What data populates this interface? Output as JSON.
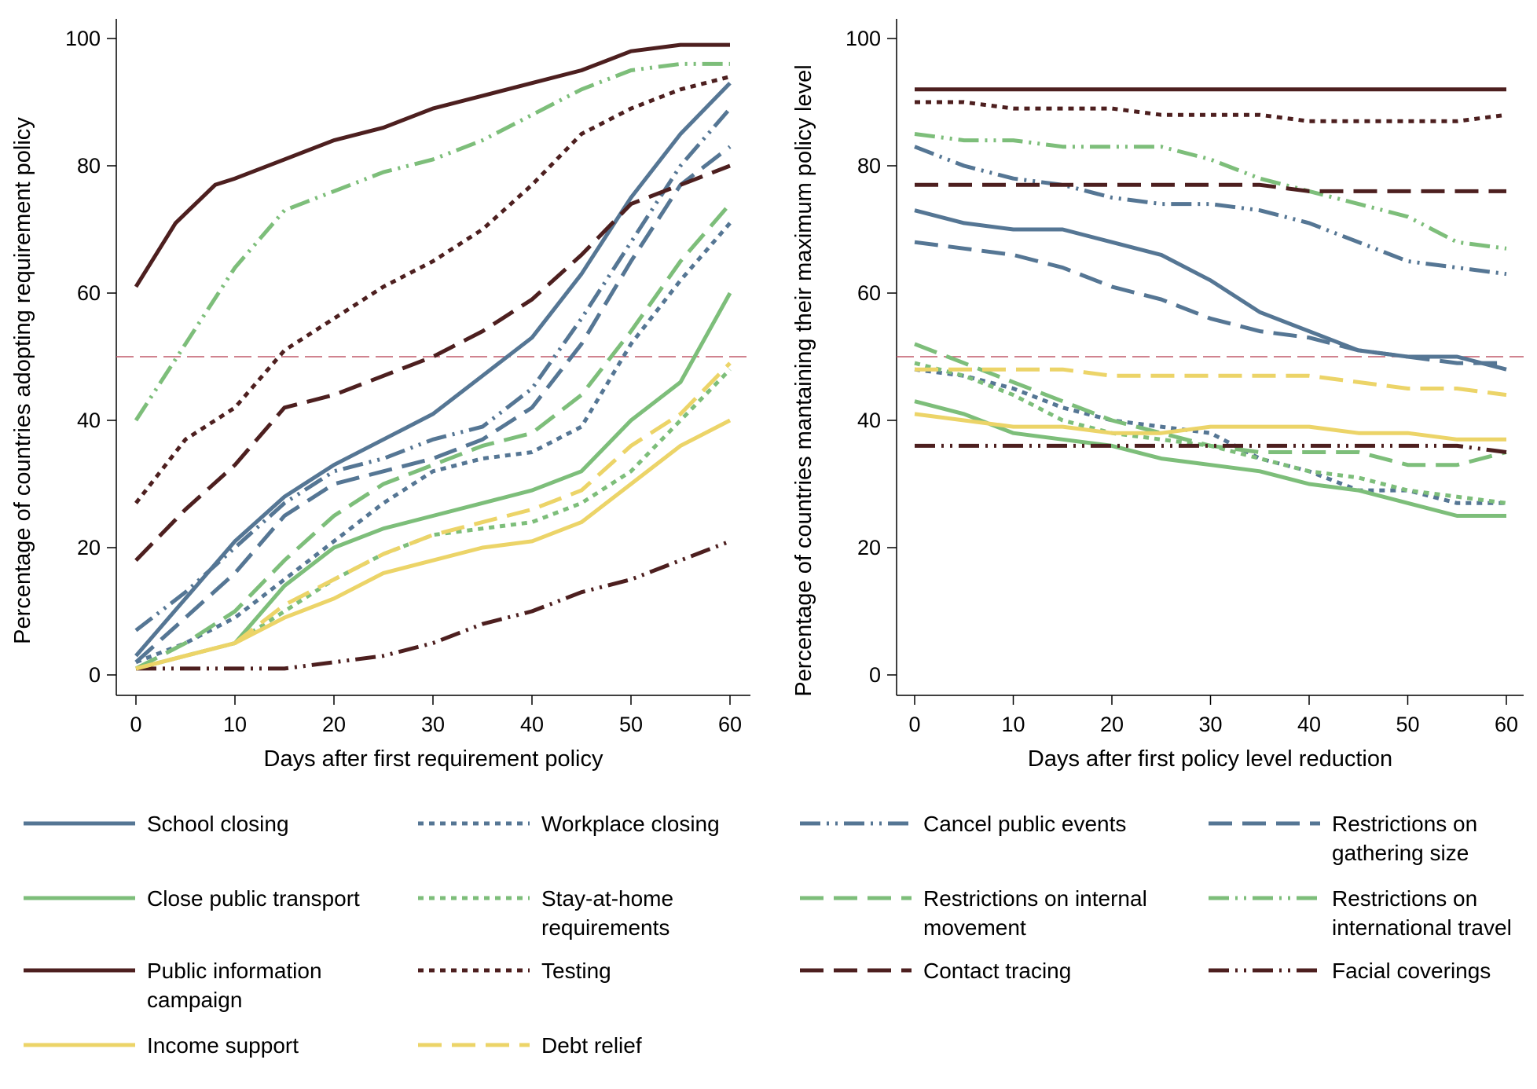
{
  "colors": {
    "blue": "#557694",
    "green": "#7dbe7a",
    "maroon": "#4d1f1f",
    "yellow": "#ecd468",
    "reference": "#c05a6a"
  },
  "chart_data": [
    {
      "type": "line",
      "xlabel": "Days after first requirement policy",
      "ylabel": "Percentage of countries adopting requirement policy",
      "xlim": [
        0,
        60
      ],
      "ylim": [
        0,
        100
      ],
      "xticks": [
        0,
        10,
        20,
        30,
        40,
        50,
        60
      ],
      "yticks": [
        0,
        20,
        40,
        60,
        80,
        100
      ],
      "reference_line": 50,
      "grid": false,
      "series": [
        {
          "name": "School closing",
          "color": "blue",
          "dash": "solid",
          "x": [
            0,
            5,
            10,
            15,
            20,
            25,
            30,
            35,
            40,
            45,
            50,
            55,
            60
          ],
          "y": [
            3,
            12,
            21,
            28,
            33,
            37,
            41,
            47,
            53,
            63,
            75,
            85,
            93
          ]
        },
        {
          "name": "Workplace closing",
          "color": "blue",
          "dash": "short",
          "x": [
            0,
            5,
            10,
            15,
            20,
            25,
            30,
            35,
            40,
            45,
            50,
            55,
            60
          ],
          "y": [
            2,
            5,
            9,
            15,
            21,
            27,
            32,
            34,
            35,
            39,
            52,
            62,
            71
          ]
        },
        {
          "name": "Cancel public events",
          "color": "blue",
          "dash": "dashdot",
          "x": [
            0,
            5,
            10,
            15,
            20,
            25,
            30,
            35,
            40,
            45,
            50,
            55,
            60
          ],
          "y": [
            7,
            13,
            20,
            27,
            32,
            34,
            37,
            39,
            45,
            56,
            68,
            80,
            89
          ]
        },
        {
          "name": "Restrictions on gathering size",
          "color": "blue",
          "dash": "long",
          "x": [
            0,
            5,
            10,
            15,
            20,
            25,
            30,
            35,
            40,
            45,
            50,
            55,
            60
          ],
          "y": [
            2,
            9,
            16,
            25,
            30,
            32,
            34,
            37,
            42,
            52,
            65,
            77,
            83
          ]
        },
        {
          "name": "Close public transport",
          "color": "green",
          "dash": "solid",
          "x": [
            0,
            5,
            10,
            15,
            20,
            25,
            30,
            35,
            40,
            45,
            50,
            55,
            60
          ],
          "y": [
            1,
            3,
            5,
            14,
            20,
            23,
            25,
            27,
            29,
            32,
            40,
            46,
            60
          ]
        },
        {
          "name": "Stay-at-home requirements",
          "color": "green",
          "dash": "short",
          "x": [
            0,
            5,
            10,
            15,
            20,
            25,
            30,
            35,
            40,
            45,
            50,
            55,
            60
          ],
          "y": [
            1,
            3,
            5,
            10,
            15,
            19,
            22,
            23,
            24,
            27,
            32,
            40,
            48
          ]
        },
        {
          "name": "Restrictions on internal movement",
          "color": "green",
          "dash": "long",
          "x": [
            0,
            5,
            10,
            15,
            20,
            25,
            30,
            35,
            40,
            45,
            50,
            55,
            60
          ],
          "y": [
            1,
            5,
            10,
            18,
            25,
            30,
            33,
            36,
            38,
            44,
            54,
            65,
            74
          ]
        },
        {
          "name": "Restrictions on international travel",
          "color": "green",
          "dash": "dashdot",
          "x": [
            0,
            5,
            10,
            15,
            20,
            25,
            30,
            35,
            40,
            45,
            50,
            55,
            60
          ],
          "y": [
            40,
            52,
            64,
            73,
            76,
            79,
            81,
            84,
            88,
            92,
            95,
            96,
            96
          ]
        },
        {
          "name": "Public information campaign",
          "color": "maroon",
          "dash": "solid",
          "x": [
            0,
            2,
            4,
            6,
            8,
            10,
            15,
            20,
            25,
            30,
            35,
            40,
            45,
            50,
            55,
            60
          ],
          "y": [
            61,
            66,
            71,
            74,
            77,
            78,
            81,
            84,
            86,
            89,
            91,
            93,
            95,
            98,
            99,
            99
          ]
        },
        {
          "name": "Testing",
          "color": "maroon",
          "dash": "short",
          "x": [
            0,
            5,
            10,
            15,
            20,
            25,
            30,
            35,
            40,
            45,
            50,
            55,
            60
          ],
          "y": [
            27,
            37,
            42,
            51,
            56,
            61,
            65,
            70,
            77,
            85,
            89,
            92,
            94
          ]
        },
        {
          "name": "Contact tracing",
          "color": "maroon",
          "dash": "long",
          "x": [
            0,
            5,
            10,
            15,
            20,
            25,
            30,
            35,
            40,
            45,
            50,
            55,
            60
          ],
          "y": [
            18,
            26,
            33,
            42,
            44,
            47,
            50,
            54,
            59,
            66,
            74,
            77,
            80
          ]
        },
        {
          "name": "Facial coverings",
          "color": "maroon",
          "dash": "dashdot",
          "x": [
            0,
            5,
            10,
            15,
            20,
            25,
            30,
            35,
            40,
            45,
            50,
            55,
            60
          ],
          "y": [
            1,
            1,
            1,
            1,
            2,
            3,
            5,
            8,
            10,
            13,
            15,
            18,
            21
          ]
        },
        {
          "name": "Income support",
          "color": "yellow",
          "dash": "solid",
          "x": [
            0,
            5,
            10,
            15,
            20,
            25,
            30,
            35,
            40,
            45,
            50,
            55,
            60
          ],
          "y": [
            1,
            3,
            5,
            9,
            12,
            16,
            18,
            20,
            21,
            24,
            30,
            36,
            40
          ]
        },
        {
          "name": "Debt relief",
          "color": "yellow",
          "dash": "long",
          "x": [
            0,
            5,
            10,
            15,
            20,
            25,
            30,
            35,
            40,
            45,
            50,
            55,
            60
          ],
          "y": [
            1,
            3,
            5,
            11,
            15,
            19,
            22,
            24,
            26,
            29,
            36,
            41,
            49
          ]
        }
      ]
    },
    {
      "type": "line",
      "xlabel": "Days after first policy level reduction",
      "ylabel": "Percentage of countries mantaining their maximum policy level",
      "xlim": [
        0,
        60
      ],
      "ylim": [
        0,
        100
      ],
      "xticks": [
        0,
        10,
        20,
        30,
        40,
        50,
        60
      ],
      "yticks": [
        0,
        20,
        40,
        60,
        80,
        100
      ],
      "reference_line": 50,
      "grid": false,
      "series": [
        {
          "name": "School closing",
          "color": "blue",
          "dash": "solid",
          "x": [
            0,
            5,
            10,
            15,
            20,
            25,
            30,
            35,
            40,
            45,
            50,
            55,
            60
          ],
          "y": [
            73,
            71,
            70,
            70,
            68,
            66,
            62,
            57,
            54,
            51,
            50,
            50,
            48
          ]
        },
        {
          "name": "Workplace closing",
          "color": "blue",
          "dash": "short",
          "x": [
            0,
            5,
            10,
            15,
            20,
            25,
            30,
            35,
            40,
            45,
            50,
            55,
            60
          ],
          "y": [
            48,
            47,
            45,
            42,
            40,
            39,
            38,
            34,
            32,
            29,
            29,
            27,
            27
          ]
        },
        {
          "name": "Cancel public events",
          "color": "blue",
          "dash": "dashdot",
          "x": [
            0,
            5,
            10,
            15,
            20,
            25,
            30,
            35,
            40,
            45,
            50,
            55,
            60
          ],
          "y": [
            83,
            80,
            78,
            77,
            75,
            74,
            74,
            73,
            71,
            68,
            65,
            64,
            63
          ]
        },
        {
          "name": "Restrictions on gathering size",
          "color": "blue",
          "dash": "long",
          "x": [
            0,
            5,
            10,
            15,
            20,
            25,
            30,
            35,
            40,
            45,
            50,
            55,
            60
          ],
          "y": [
            68,
            67,
            66,
            64,
            61,
            59,
            56,
            54,
            53,
            51,
            50,
            49,
            49
          ]
        },
        {
          "name": "Close public transport",
          "color": "green",
          "dash": "solid",
          "x": [
            0,
            5,
            10,
            15,
            20,
            25,
            30,
            35,
            40,
            45,
            50,
            55,
            60
          ],
          "y": [
            43,
            41,
            38,
            37,
            36,
            34,
            33,
            32,
            30,
            29,
            27,
            25,
            25
          ]
        },
        {
          "name": "Stay-at-home requirements",
          "color": "green",
          "dash": "short",
          "x": [
            0,
            5,
            10,
            15,
            20,
            25,
            30,
            35,
            40,
            45,
            50,
            55,
            60
          ],
          "y": [
            49,
            47,
            44,
            40,
            38,
            37,
            36,
            34,
            32,
            31,
            29,
            28,
            27
          ]
        },
        {
          "name": "Restrictions on internal movement",
          "color": "green",
          "dash": "long",
          "x": [
            0,
            5,
            10,
            15,
            20,
            25,
            30,
            35,
            40,
            45,
            50,
            55,
            60
          ],
          "y": [
            52,
            49,
            46,
            43,
            40,
            38,
            36,
            35,
            35,
            35,
            33,
            33,
            35
          ]
        },
        {
          "name": "Restrictions on international travel",
          "color": "green",
          "dash": "dashdot",
          "x": [
            0,
            5,
            10,
            15,
            20,
            25,
            30,
            35,
            40,
            45,
            50,
            55,
            60
          ],
          "y": [
            85,
            84,
            84,
            83,
            83,
            83,
            81,
            78,
            76,
            74,
            72,
            68,
            67
          ]
        },
        {
          "name": "Public information campaign",
          "color": "maroon",
          "dash": "solid",
          "x": [
            0,
            5,
            10,
            15,
            20,
            25,
            30,
            35,
            40,
            45,
            50,
            55,
            60
          ],
          "y": [
            92,
            92,
            92,
            92,
            92,
            92,
            92,
            92,
            92,
            92,
            92,
            92,
            92
          ]
        },
        {
          "name": "Testing",
          "color": "maroon",
          "dash": "short",
          "x": [
            0,
            5,
            10,
            15,
            20,
            25,
            30,
            35,
            40,
            45,
            50,
            55,
            60
          ],
          "y": [
            90,
            90,
            89,
            89,
            89,
            88,
            88,
            88,
            87,
            87,
            87,
            87,
            88
          ]
        },
        {
          "name": "Contact tracing",
          "color": "maroon",
          "dash": "long",
          "x": [
            0,
            5,
            10,
            15,
            20,
            25,
            30,
            35,
            40,
            45,
            50,
            55,
            60
          ],
          "y": [
            77,
            77,
            77,
            77,
            77,
            77,
            77,
            77,
            76,
            76,
            76,
            76,
            76
          ]
        },
        {
          "name": "Facial coverings",
          "color": "maroon",
          "dash": "dashdot",
          "x": [
            0,
            5,
            10,
            15,
            20,
            25,
            30,
            35,
            40,
            45,
            50,
            55,
            60
          ],
          "y": [
            36,
            36,
            36,
            36,
            36,
            36,
            36,
            36,
            36,
            36,
            36,
            36,
            35
          ]
        },
        {
          "name": "Income support",
          "color": "yellow",
          "dash": "solid",
          "x": [
            0,
            5,
            10,
            15,
            20,
            25,
            30,
            35,
            40,
            45,
            50,
            55,
            60
          ],
          "y": [
            41,
            40,
            39,
            39,
            38,
            38,
            39,
            39,
            39,
            38,
            38,
            37,
            37
          ]
        },
        {
          "name": "Debt relief",
          "color": "yellow",
          "dash": "long",
          "x": [
            0,
            5,
            10,
            15,
            20,
            25,
            30,
            35,
            40,
            45,
            50,
            55,
            60
          ],
          "y": [
            48,
            48,
            48,
            48,
            47,
            47,
            47,
            47,
            47,
            46,
            45,
            45,
            44
          ]
        }
      ]
    }
  ],
  "legend": {
    "items": [
      {
        "lines": [
          "School closing"
        ],
        "color": "blue",
        "dash": "solid"
      },
      {
        "lines": [
          "Workplace closing"
        ],
        "color": "blue",
        "dash": "short"
      },
      {
        "lines": [
          "Cancel public events"
        ],
        "color": "blue",
        "dash": "dashdot"
      },
      {
        "lines": [
          "Restrictions on",
          "gathering size"
        ],
        "color": "blue",
        "dash": "long"
      },
      {
        "lines": [
          "Close public transport"
        ],
        "color": "green",
        "dash": "solid"
      },
      {
        "lines": [
          "Stay-at-home",
          "requirements"
        ],
        "color": "green",
        "dash": "short"
      },
      {
        "lines": [
          "Restrictions on internal",
          "movement"
        ],
        "color": "green",
        "dash": "long"
      },
      {
        "lines": [
          "Restrictions on",
          "international travel"
        ],
        "color": "green",
        "dash": "dashdot"
      },
      {
        "lines": [
          "Public information",
          "campaign"
        ],
        "color": "maroon",
        "dash": "solid"
      },
      {
        "lines": [
          "Testing"
        ],
        "color": "maroon",
        "dash": "short"
      },
      {
        "lines": [
          "Contact tracing"
        ],
        "color": "maroon",
        "dash": "long"
      },
      {
        "lines": [
          "Facial coverings"
        ],
        "color": "maroon",
        "dash": "dashdot"
      },
      {
        "lines": [
          "Income support"
        ],
        "color": "yellow",
        "dash": "solid"
      },
      {
        "lines": [
          "Debt relief"
        ],
        "color": "yellow",
        "dash": "long"
      }
    ]
  }
}
